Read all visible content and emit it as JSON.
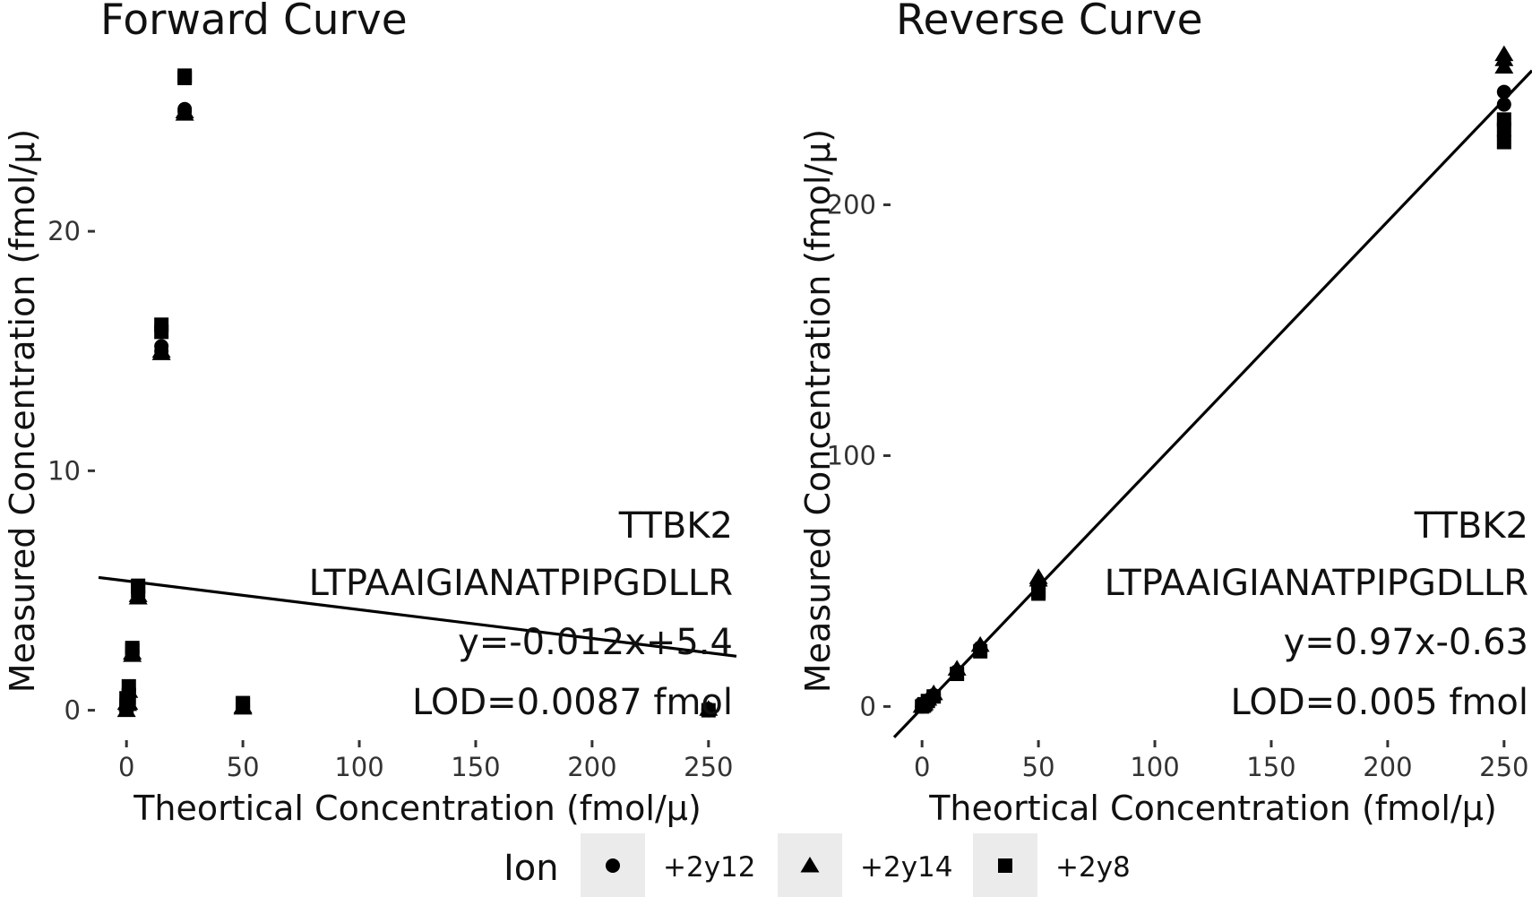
{
  "legend": {
    "title": "Ion",
    "items": [
      {
        "label": "+2y12",
        "shape": "circle"
      },
      {
        "label": "+2y14",
        "shape": "triangle"
      },
      {
        "label": "+2y8",
        "shape": "square"
      }
    ]
  },
  "chart_data": [
    {
      "type": "scatter",
      "title": "Forward Curve",
      "xlabel": "Theortical Concentration (fmol/µ)",
      "ylabel": "Measured Concentration (fmol/µ)",
      "xlim": [
        -12,
        262
      ],
      "ylim": [
        -1.1,
        27.6
      ],
      "xticks": [
        0,
        50,
        100,
        150,
        200,
        250
      ],
      "yticks": [
        0,
        10,
        20
      ],
      "annotations": [
        "TTBK2",
        "LTPAAIGIANATPIPGDLLR",
        "y=-0.012x+5.4",
        "LOD=0.0087 fmol"
      ],
      "fit_line": {
        "slope": -0.012,
        "intercept": 5.4
      },
      "series": [
        {
          "name": "+2y12",
          "points": [
            [
              0,
              0.05
            ],
            [
              0,
              0.2
            ],
            [
              0,
              0.45
            ],
            [
              0.5,
              0.15
            ],
            [
              0.5,
              0.35
            ],
            [
              1,
              0.25
            ],
            [
              1,
              0.6
            ],
            [
              1,
              0.9
            ],
            [
              2.5,
              2.4
            ],
            [
              2.5,
              2.5
            ],
            [
              5,
              4.9
            ],
            [
              5,
              5.0
            ],
            [
              15,
              15.0
            ],
            [
              15,
              15.2
            ],
            [
              25,
              25.0
            ],
            [
              25,
              25.1
            ],
            [
              50,
              0.15
            ],
            [
              50,
              0.2
            ],
            [
              250,
              0.0
            ],
            [
              250,
              0.05
            ]
          ]
        },
        {
          "name": "+2y14",
          "points": [
            [
              0,
              0.0
            ],
            [
              0,
              0.3
            ],
            [
              0.5,
              0.25
            ],
            [
              1,
              0.3
            ],
            [
              1,
              0.8
            ],
            [
              2.5,
              2.3
            ],
            [
              2.5,
              2.4
            ],
            [
              5,
              4.7
            ],
            [
              5,
              4.8
            ],
            [
              15,
              14.9
            ],
            [
              15,
              15.0
            ],
            [
              25,
              24.9
            ],
            [
              25,
              25.0
            ],
            [
              50,
              0.1
            ],
            [
              50,
              0.15
            ],
            [
              250,
              0.05
            ]
          ]
        },
        {
          "name": "+2y8",
          "points": [
            [
              0,
              0.1
            ],
            [
              0,
              0.5
            ],
            [
              0.5,
              0.3
            ],
            [
              1,
              0.6
            ],
            [
              1,
              1.0
            ],
            [
              2.5,
              2.5
            ],
            [
              2.5,
              2.6
            ],
            [
              5,
              5.0
            ],
            [
              5,
              5.2
            ],
            [
              15,
              15.8
            ],
            [
              15,
              16.1
            ],
            [
              25,
              26.4
            ],
            [
              25,
              26.5
            ],
            [
              50,
              0.25
            ],
            [
              50,
              0.3
            ],
            [
              250,
              0.0
            ]
          ]
        }
      ]
    },
    {
      "type": "scatter",
      "title": "Reverse Curve",
      "xlabel": "Theortical Concentration (fmol/µ)",
      "ylabel": "Measured Concentration (fmol/µ)",
      "xlim": [
        -12,
        262
      ],
      "ylim": [
        -12,
        262
      ],
      "xticks": [
        0,
        50,
        100,
        150,
        200,
        250
      ],
      "yticks": [
        0,
        100,
        200
      ],
      "annotations": [
        "TTBK2",
        "LTPAAIGIANATPIPGDLLR",
        "y=0.97x-0.63",
        "LOD=0.005 fmol"
      ],
      "fit_line": {
        "slope": 0.97,
        "intercept": -0.63
      },
      "series": [
        {
          "name": "+2y12",
          "points": [
            [
              0,
              0.0
            ],
            [
              0.5,
              0.5
            ],
            [
              1,
              0.8
            ],
            [
              2.5,
              2.3
            ],
            [
              5,
              4.5
            ],
            [
              15,
              14.0
            ],
            [
              25,
              23.5
            ],
            [
              50,
              47.0
            ],
            [
              50,
              48.5
            ],
            [
              250,
              240.0
            ],
            [
              250,
              245.0
            ]
          ]
        },
        {
          "name": "+2y14",
          "points": [
            [
              0,
              0.2
            ],
            [
              0.5,
              0.7
            ],
            [
              1,
              1.2
            ],
            [
              2.5,
              3.0
            ],
            [
              5,
              5.2
            ],
            [
              15,
              15.0
            ],
            [
              25,
              24.5
            ],
            [
              50,
              50.5
            ],
            [
              50,
              51.5
            ],
            [
              250,
              255.0
            ],
            [
              250,
              258.0
            ],
            [
              250,
              260.0
            ]
          ]
        },
        {
          "name": "+2y8",
          "points": [
            [
              0,
              0.0
            ],
            [
              0.5,
              0.4
            ],
            [
              1,
              0.9
            ],
            [
              2.5,
              2.2
            ],
            [
              5,
              4.0
            ],
            [
              15,
              13.0
            ],
            [
              25,
              22.0
            ],
            [
              50,
              45.0
            ],
            [
              50,
              46.0
            ],
            [
              250,
              225.0
            ],
            [
              250,
              230.0
            ],
            [
              250,
              234.0
            ]
          ]
        }
      ]
    }
  ]
}
